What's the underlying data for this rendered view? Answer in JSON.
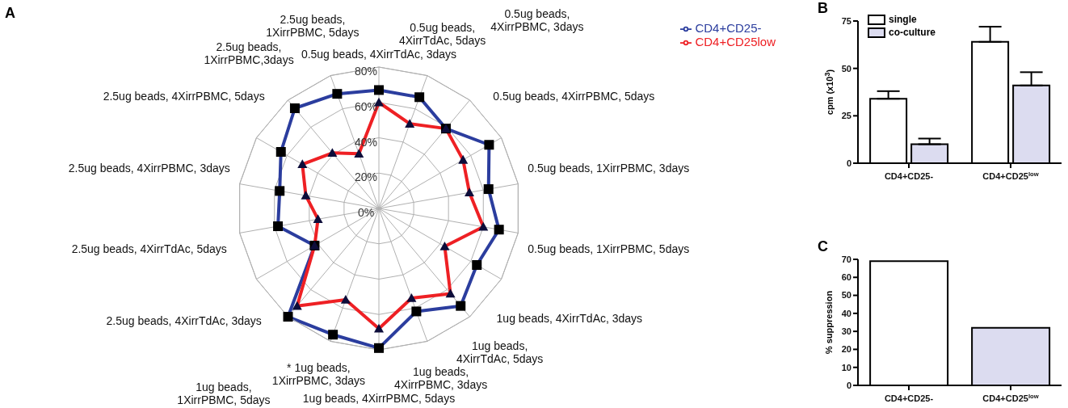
{
  "chart_data": [
    {
      "type": "radar",
      "title": "A",
      "categories": [
        "0.5ug beads, 4XirrTdAc, 3days",
        "0.5ug beads, 4XirrTdAc, 5days",
        "0.5ug beads, 4XirrPBMC, 3days",
        "0.5ug beads, 4XirrPBMC, 5days",
        "0.5ug beads, 1XirrPBMC, 3days",
        "0.5ug beads, 1XirrPBMC, 5days",
        "1ug beads, 4XirrTdAc, 3days",
        "1ug beads, 4XirrTdAc, 5days",
        "1ug beads, 4XirrPBMC, 3days",
        "1ug beads, 4XirrPBMC, 5days",
        "* 1ug beads, 1XirrPBMC, 3days",
        "1ug beads, 1XirrPBMC, 5days",
        "2.5ug beads, 4XirrTdAc, 3days",
        "2.5ug beads, 4XirrTdAc, 5days",
        "2.5ug beads, 4XirrPBMC, 3days",
        "2.5ug beads, 4XirrPBMC, 5days",
        "2.5ug beads, 1XirrPBMC,3days",
        "2.5ug beads, 1XirrPBMC, 5days"
      ],
      "series": [
        {
          "name": "CD4+CD25-",
          "color": "#2b3d9e",
          "marker": "square",
          "values": [
            67,
            67,
            59,
            72,
            63,
            69,
            64,
            72,
            62,
            79,
            76,
            80,
            42,
            58,
            57,
            64,
            74,
            69
          ]
        },
        {
          "name": "CD4+CD25low",
          "color": "#ee2024",
          "marker": "triangle",
          "values": [
            60,
            51,
            59,
            55,
            52,
            60,
            43,
            63,
            54,
            68,
            55,
            72,
            42,
            35,
            42,
            50,
            41,
            33
          ]
        }
      ],
      "ylim": [
        0,
        80
      ],
      "yticks": [
        {
          "value": 0,
          "label": "0%"
        },
        {
          "value": 20,
          "label": "20%"
        },
        {
          "value": 40,
          "label": "40%"
        },
        {
          "value": 60,
          "label": "60%"
        },
        {
          "value": 80,
          "label": "80%"
        }
      ],
      "grid": true,
      "legend": "top right"
    },
    {
      "type": "bar",
      "title": "B",
      "ylabel": "cpm (x10$^{3}$)",
      "categories": [
        "CD4+CD25-",
        "CD4+CD25$^{low}$"
      ],
      "series": [
        {
          "name": "single",
          "color": "#ffffff",
          "values": [
            34,
            64
          ],
          "errors": [
            4,
            8
          ]
        },
        {
          "name": "co-culture",
          "color": "#dcdcf0",
          "values": [
            10,
            41
          ],
          "errors": [
            3,
            7
          ]
        }
      ],
      "ylim": [
        0,
        75
      ],
      "yticks": [
        0,
        25,
        50,
        75
      ],
      "legend": "top left"
    },
    {
      "type": "bar",
      "title": "C",
      "ylabel": "% suppression",
      "categories": [
        "CD4+CD25-",
        "CD4+CD25$^{low}$"
      ],
      "values": [
        69,
        32
      ],
      "colors": [
        "#ffffff",
        "#dcdcf0"
      ],
      "ylim": [
        0,
        70
      ],
      "yticks": [
        0,
        10,
        20,
        30,
        40,
        50,
        60,
        70
      ]
    }
  ]
}
